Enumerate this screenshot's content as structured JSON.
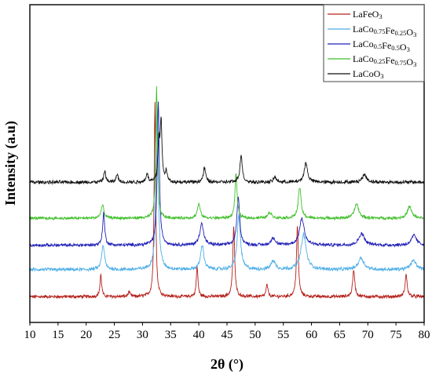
{
  "chart_data": {
    "type": "line",
    "xlabel": "2θ (°)",
    "ylabel": "Intensity (a.u)",
    "xlim": [
      10,
      80
    ],
    "x_ticks": [
      "10",
      "15",
      "20",
      "25",
      "30",
      "35",
      "40",
      "45",
      "50",
      "55",
      "60",
      "65",
      "70",
      "75",
      "80"
    ],
    "y_ticks_shown": false,
    "grid": false,
    "legend_position": "top-right",
    "series": [
      {
        "name": "LaFeO3",
        "legend_parts": [
          [
            "LaFeO",
            ""
          ],
          [
            "3",
            "sub"
          ]
        ],
        "color": "#b5201a",
        "baseline": 1.0,
        "noise": 0.055,
        "peaks": [
          [
            22.6,
            0.85,
            0.18
          ],
          [
            32.2,
            7.6,
            0.16
          ],
          [
            39.7,
            1.15,
            0.18
          ],
          [
            46.2,
            2.7,
            0.2
          ],
          [
            52.1,
            0.45,
            0.2
          ],
          [
            57.5,
            2.75,
            0.2
          ],
          [
            67.5,
            1.05,
            0.22
          ],
          [
            76.8,
            0.85,
            0.22
          ],
          [
            27.6,
            0.18,
            0.2
          ]
        ]
      },
      {
        "name": "LaCo0.75Fe0.25O3",
        "legend_parts": [
          [
            "LaCo",
            ""
          ],
          [
            "0.75",
            "sub"
          ],
          [
            "Fe",
            ""
          ],
          [
            "0.25",
            "sub"
          ],
          [
            "O",
            ""
          ],
          [
            "3",
            "sub"
          ]
        ],
        "color": "#4eaee8",
        "baseline": 2.05,
        "noise": 0.06,
        "peaks": [
          [
            23.0,
            0.95,
            0.3
          ],
          [
            32.6,
            6.2,
            0.25
          ],
          [
            40.6,
            0.95,
            0.35
          ],
          [
            47.1,
            2.1,
            0.35
          ],
          [
            53.2,
            0.35,
            0.45
          ],
          [
            58.6,
            1.35,
            0.55
          ],
          [
            68.8,
            0.45,
            0.6
          ],
          [
            78.1,
            0.35,
            0.6
          ]
        ]
      },
      {
        "name": "LaCo0.5Fe0.5O3",
        "legend_parts": [
          [
            "LaCo",
            ""
          ],
          [
            "0.5",
            "sub"
          ],
          [
            "Fe",
            ""
          ],
          [
            "0.5",
            "sub"
          ],
          [
            "O",
            ""
          ],
          [
            "3",
            "sub"
          ]
        ],
        "color": "#2222b8",
        "baseline": 3.0,
        "noise": 0.055,
        "peaks": [
          [
            23.1,
            1.25,
            0.22
          ],
          [
            32.8,
            5.6,
            0.22
          ],
          [
            40.5,
            0.85,
            0.4
          ],
          [
            47.0,
            1.85,
            0.3
          ],
          [
            53.2,
            0.3,
            0.4
          ],
          [
            58.3,
            1.05,
            0.5
          ],
          [
            68.9,
            0.45,
            0.6
          ],
          [
            78.2,
            0.38,
            0.55
          ]
        ]
      },
      {
        "name": "LaCo0.25Fe0.75O3",
        "legend_parts": [
          [
            "LaCo",
            ""
          ],
          [
            "0.25",
            "sub"
          ],
          [
            "Fe",
            ""
          ],
          [
            "0.75",
            "sub"
          ],
          [
            "O",
            ""
          ],
          [
            "3",
            "sub"
          ]
        ],
        "color": "#3fbf2a",
        "baseline": 4.05,
        "noise": 0.05,
        "peaks": [
          [
            22.9,
            0.5,
            0.3
          ],
          [
            32.5,
            5.1,
            0.18
          ],
          [
            40.0,
            0.55,
            0.3
          ],
          [
            46.6,
            1.75,
            0.22
          ],
          [
            52.6,
            0.22,
            0.4
          ],
          [
            57.9,
            1.2,
            0.3
          ],
          [
            68.0,
            0.55,
            0.45
          ],
          [
            77.4,
            0.45,
            0.45
          ]
        ]
      },
      {
        "name": "LaCoO3",
        "legend_parts": [
          [
            "LaCoO",
            ""
          ],
          [
            "3",
            "sub"
          ]
        ],
        "color": "#111111",
        "baseline": 5.45,
        "noise": 0.06,
        "peaks": [
          [
            23.3,
            0.45,
            0.2
          ],
          [
            25.5,
            0.32,
            0.2
          ],
          [
            30.8,
            0.35,
            0.2
          ],
          [
            32.9,
            1.6,
            0.18
          ],
          [
            33.3,
            2.3,
            0.18
          ],
          [
            34.2,
            0.4,
            0.2
          ],
          [
            41.0,
            0.55,
            0.25
          ],
          [
            47.5,
            1.05,
            0.25
          ],
          [
            53.5,
            0.2,
            0.3
          ],
          [
            59.0,
            0.75,
            0.35
          ],
          [
            69.4,
            0.3,
            0.45
          ]
        ]
      }
    ]
  }
}
